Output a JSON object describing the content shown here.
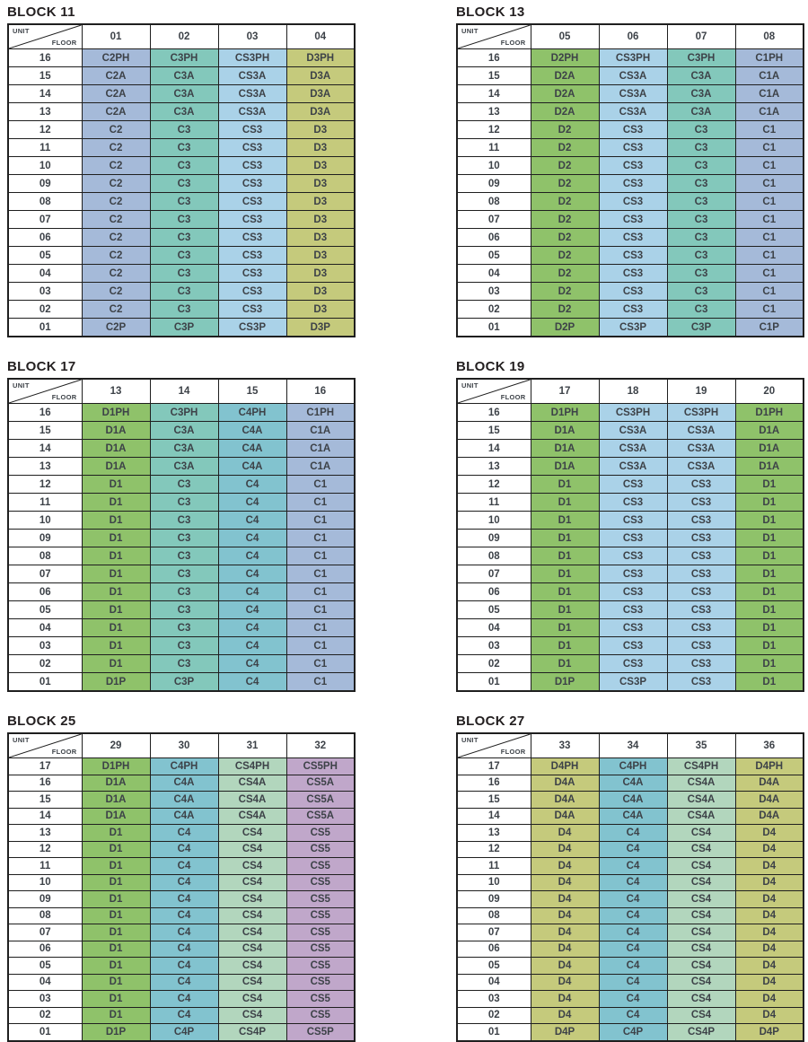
{
  "palette": {
    "c1": "#a5bad9",
    "c2": "#a5bad9",
    "c3": "#83c8bb",
    "c4": "#82c3cf",
    "cs3": "#aad2e8",
    "cs4": "#b2d6bd",
    "cs5": "#c0a7ca",
    "d1": "#8fc26a",
    "d2": "#8fc26a",
    "d3": "#c5ca7c",
    "d4": "#c5ca7c"
  },
  "corner": {
    "top": "UNIT",
    "bottom": "FLOOR"
  },
  "blocks": [
    {
      "title": "BLOCK 11",
      "units": [
        "01",
        "02",
        "03",
        "04"
      ],
      "col_colors": [
        "c2",
        "c3",
        "cs3",
        "d3"
      ],
      "floors": [
        "16",
        "15",
        "14",
        "13",
        "12",
        "11",
        "10",
        "09",
        "08",
        "07",
        "06",
        "05",
        "04",
        "03",
        "02",
        "01"
      ],
      "rows": [
        [
          "C2PH",
          "C3PH",
          "CS3PH",
          "D3PH"
        ],
        [
          "C2A",
          "C3A",
          "CS3A",
          "D3A"
        ],
        [
          "C2A",
          "C3A",
          "CS3A",
          "D3A"
        ],
        [
          "C2A",
          "C3A",
          "CS3A",
          "D3A"
        ],
        [
          "C2",
          "C3",
          "CS3",
          "D3"
        ],
        [
          "C2",
          "C3",
          "CS3",
          "D3"
        ],
        [
          "C2",
          "C3",
          "CS3",
          "D3"
        ],
        [
          "C2",
          "C3",
          "CS3",
          "D3"
        ],
        [
          "C2",
          "C3",
          "CS3",
          "D3"
        ],
        [
          "C2",
          "C3",
          "CS3",
          "D3"
        ],
        [
          "C2",
          "C3",
          "CS3",
          "D3"
        ],
        [
          "C2",
          "C3",
          "CS3",
          "D3"
        ],
        [
          "C2",
          "C3",
          "CS3",
          "D3"
        ],
        [
          "C2",
          "C3",
          "CS3",
          "D3"
        ],
        [
          "C2",
          "C3",
          "CS3",
          "D3"
        ],
        [
          "C2P",
          "C3P",
          "CS3P",
          "D3P"
        ]
      ]
    },
    {
      "title": "BLOCK 13",
      "units": [
        "05",
        "06",
        "07",
        "08"
      ],
      "col_colors": [
        "d2",
        "cs3",
        "c3",
        "c1"
      ],
      "floors": [
        "16",
        "15",
        "14",
        "13",
        "12",
        "11",
        "10",
        "09",
        "08",
        "07",
        "06",
        "05",
        "04",
        "03",
        "02",
        "01"
      ],
      "rows": [
        [
          "D2PH",
          "CS3PH",
          "C3PH",
          "C1PH"
        ],
        [
          "D2A",
          "CS3A",
          "C3A",
          "C1A"
        ],
        [
          "D2A",
          "CS3A",
          "C3A",
          "C1A"
        ],
        [
          "D2A",
          "CS3A",
          "C3A",
          "C1A"
        ],
        [
          "D2",
          "CS3",
          "C3",
          "C1"
        ],
        [
          "D2",
          "CS3",
          "C3",
          "C1"
        ],
        [
          "D2",
          "CS3",
          "C3",
          "C1"
        ],
        [
          "D2",
          "CS3",
          "C3",
          "C1"
        ],
        [
          "D2",
          "CS3",
          "C3",
          "C1"
        ],
        [
          "D2",
          "CS3",
          "C3",
          "C1"
        ],
        [
          "D2",
          "CS3",
          "C3",
          "C1"
        ],
        [
          "D2",
          "CS3",
          "C3",
          "C1"
        ],
        [
          "D2",
          "CS3",
          "C3",
          "C1"
        ],
        [
          "D2",
          "CS3",
          "C3",
          "C1"
        ],
        [
          "D2",
          "CS3",
          "C3",
          "C1"
        ],
        [
          "D2P",
          "CS3P",
          "C3P",
          "C1P"
        ]
      ]
    },
    {
      "title": "BLOCK 17",
      "units": [
        "13",
        "14",
        "15",
        "16"
      ],
      "col_colors": [
        "d1",
        "c3",
        "c4",
        "c1"
      ],
      "floors": [
        "16",
        "15",
        "14",
        "13",
        "12",
        "11",
        "10",
        "09",
        "08",
        "07",
        "06",
        "05",
        "04",
        "03",
        "02",
        "01"
      ],
      "rows": [
        [
          "D1PH",
          "C3PH",
          "C4PH",
          "C1PH"
        ],
        [
          "D1A",
          "C3A",
          "C4A",
          "C1A"
        ],
        [
          "D1A",
          "C3A",
          "C4A",
          "C1A"
        ],
        [
          "D1A",
          "C3A",
          "C4A",
          "C1A"
        ],
        [
          "D1",
          "C3",
          "C4",
          "C1"
        ],
        [
          "D1",
          "C3",
          "C4",
          "C1"
        ],
        [
          "D1",
          "C3",
          "C4",
          "C1"
        ],
        [
          "D1",
          "C3",
          "C4",
          "C1"
        ],
        [
          "D1",
          "C3",
          "C4",
          "C1"
        ],
        [
          "D1",
          "C3",
          "C4",
          "C1"
        ],
        [
          "D1",
          "C3",
          "C4",
          "C1"
        ],
        [
          "D1",
          "C3",
          "C4",
          "C1"
        ],
        [
          "D1",
          "C3",
          "C4",
          "C1"
        ],
        [
          "D1",
          "C3",
          "C4",
          "C1"
        ],
        [
          "D1",
          "C3",
          "C4",
          "C1"
        ],
        [
          "D1P",
          "C3P",
          "C4",
          "C1"
        ]
      ]
    },
    {
      "title": "BLOCK 19",
      "units": [
        "17",
        "18",
        "19",
        "20"
      ],
      "col_colors": [
        "d1",
        "cs3",
        "cs3",
        "d1"
      ],
      "floors": [
        "16",
        "15",
        "14",
        "13",
        "12",
        "11",
        "10",
        "09",
        "08",
        "07",
        "06",
        "05",
        "04",
        "03",
        "02",
        "01"
      ],
      "rows": [
        [
          "D1PH",
          "CS3PH",
          "CS3PH",
          "D1PH"
        ],
        [
          "D1A",
          "CS3A",
          "CS3A",
          "D1A"
        ],
        [
          "D1A",
          "CS3A",
          "CS3A",
          "D1A"
        ],
        [
          "D1A",
          "CS3A",
          "CS3A",
          "D1A"
        ],
        [
          "D1",
          "CS3",
          "CS3",
          "D1"
        ],
        [
          "D1",
          "CS3",
          "CS3",
          "D1"
        ],
        [
          "D1",
          "CS3",
          "CS3",
          "D1"
        ],
        [
          "D1",
          "CS3",
          "CS3",
          "D1"
        ],
        [
          "D1",
          "CS3",
          "CS3",
          "D1"
        ],
        [
          "D1",
          "CS3",
          "CS3",
          "D1"
        ],
        [
          "D1",
          "CS3",
          "CS3",
          "D1"
        ],
        [
          "D1",
          "CS3",
          "CS3",
          "D1"
        ],
        [
          "D1",
          "CS3",
          "CS3",
          "D1"
        ],
        [
          "D1",
          "CS3",
          "CS3",
          "D1"
        ],
        [
          "D1",
          "CS3",
          "CS3",
          "D1"
        ],
        [
          "D1P",
          "CS3P",
          "CS3",
          "D1"
        ]
      ]
    },
    {
      "title": "BLOCK 25",
      "units": [
        "29",
        "30",
        "31",
        "32"
      ],
      "col_colors": [
        "d1",
        "c4",
        "cs4",
        "cs5"
      ],
      "floors": [
        "17",
        "16",
        "15",
        "14",
        "13",
        "12",
        "11",
        "10",
        "09",
        "08",
        "07",
        "06",
        "05",
        "04",
        "03",
        "02",
        "01"
      ],
      "rows": [
        [
          "D1PH",
          "C4PH",
          "CS4PH",
          "CS5PH"
        ],
        [
          "D1A",
          "C4A",
          "CS4A",
          "CS5A"
        ],
        [
          "D1A",
          "C4A",
          "CS4A",
          "CS5A"
        ],
        [
          "D1A",
          "C4A",
          "CS4A",
          "CS5A"
        ],
        [
          "D1",
          "C4",
          "CS4",
          "CS5"
        ],
        [
          "D1",
          "C4",
          "CS4",
          "CS5"
        ],
        [
          "D1",
          "C4",
          "CS4",
          "CS5"
        ],
        [
          "D1",
          "C4",
          "CS4",
          "CS5"
        ],
        [
          "D1",
          "C4",
          "CS4",
          "CS5"
        ],
        [
          "D1",
          "C4",
          "CS4",
          "CS5"
        ],
        [
          "D1",
          "C4",
          "CS4",
          "CS5"
        ],
        [
          "D1",
          "C4",
          "CS4",
          "CS5"
        ],
        [
          "D1",
          "C4",
          "CS4",
          "CS5"
        ],
        [
          "D1",
          "C4",
          "CS4",
          "CS5"
        ],
        [
          "D1",
          "C4",
          "CS4",
          "CS5"
        ],
        [
          "D1",
          "C4",
          "CS4",
          "CS5"
        ],
        [
          "D1P",
          "C4P",
          "CS4P",
          "CS5P"
        ]
      ]
    },
    {
      "title": "BLOCK 27",
      "units": [
        "33",
        "34",
        "35",
        "36"
      ],
      "col_colors": [
        "d4",
        "c4",
        "cs4",
        "d4"
      ],
      "floors": [
        "17",
        "16",
        "15",
        "14",
        "13",
        "12",
        "11",
        "10",
        "09",
        "08",
        "07",
        "06",
        "05",
        "04",
        "03",
        "02",
        "01"
      ],
      "rows": [
        [
          "D4PH",
          "C4PH",
          "CS4PH",
          "D4PH"
        ],
        [
          "D4A",
          "C4A",
          "CS4A",
          "D4A"
        ],
        [
          "D4A",
          "C4A",
          "CS4A",
          "D4A"
        ],
        [
          "D4A",
          "C4A",
          "CS4A",
          "D4A"
        ],
        [
          "D4",
          "C4",
          "CS4",
          "D4"
        ],
        [
          "D4",
          "C4",
          "CS4",
          "D4"
        ],
        [
          "D4",
          "C4",
          "CS4",
          "D4"
        ],
        [
          "D4",
          "C4",
          "CS4",
          "D4"
        ],
        [
          "D4",
          "C4",
          "CS4",
          "D4"
        ],
        [
          "D4",
          "C4",
          "CS4",
          "D4"
        ],
        [
          "D4",
          "C4",
          "CS4",
          "D4"
        ],
        [
          "D4",
          "C4",
          "CS4",
          "D4"
        ],
        [
          "D4",
          "C4",
          "CS4",
          "D4"
        ],
        [
          "D4",
          "C4",
          "CS4",
          "D4"
        ],
        [
          "D4",
          "C4",
          "CS4",
          "D4"
        ],
        [
          "D4",
          "C4",
          "CS4",
          "D4"
        ],
        [
          "D4P",
          "C4P",
          "CS4P",
          "D4P"
        ]
      ]
    }
  ]
}
